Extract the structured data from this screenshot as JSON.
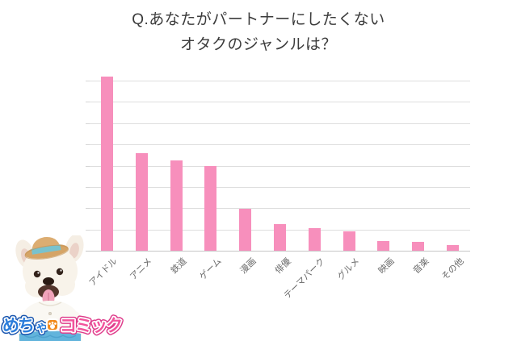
{
  "title": {
    "line1": "Q.あなたがパートナーにしたくない",
    "line2": "オタクのジャンルは？"
  },
  "chart_data": {
    "type": "bar",
    "title": "Q.あなたがパートナーにしたくない オタクのジャンルは？",
    "categories": [
      "アイドル",
      "アニメ",
      "鉄道",
      "ゲーム",
      "漫画",
      "俳優",
      "テーマパーク",
      "グルメ",
      "映画",
      "音楽",
      "その他"
    ],
    "values": [
      41.0,
      23.0,
      21.3,
      19.9,
      9.8,
      6.2,
      5.4,
      4.5,
      2.3,
      2.1,
      1.3
    ],
    "xlabel": "",
    "ylabel": "",
    "ylim": [
      0,
      40
    ],
    "gridline_step": 5,
    "grid": true,
    "legend": false,
    "bar_color": "#F78FBC"
  },
  "colors": {
    "bar": "#F78FBC",
    "gridline": "#DEDEDE",
    "axis": "#C6C6C6",
    "title_text": "#3B3B3B",
    "label_text": "#6A6A6A",
    "logo_blue": "#2B7DDB",
    "logo_pink": "#F2539C",
    "logo_icon_orange": "#F18A1D"
  },
  "logo": {
    "part1": "めち",
    "part2": "ゃ",
    "part3": "コミック",
    "icon": "paw-icon"
  }
}
